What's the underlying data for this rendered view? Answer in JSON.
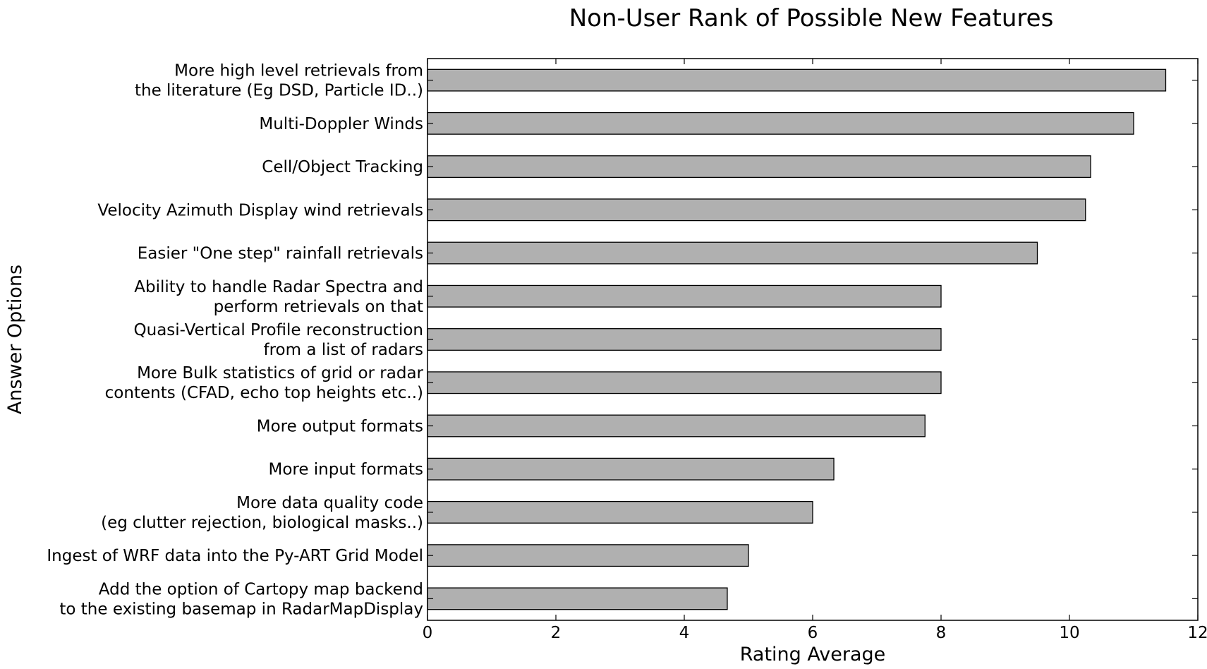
{
  "chart_data": {
    "type": "bar",
    "orientation": "horizontal",
    "title": "Non-User Rank of Possible New Features",
    "xlabel": "Rating Average",
    "ylabel": "Answer Options",
    "xlim": [
      0,
      12
    ],
    "xticks": [
      "0",
      "2",
      "4",
      "6",
      "8",
      "10",
      "12"
    ],
    "grid": false,
    "categories": [
      [
        "More high level retrievals from",
        "the literature (Eg DSD, Particle ID..)"
      ],
      [
        "Multi-Doppler Winds"
      ],
      [
        "Cell/Object Tracking"
      ],
      [
        "Velocity Azimuth Display wind retrievals"
      ],
      [
        "Easier \"One step\" rainfall retrievals"
      ],
      [
        "Ability to handle Radar Spectra and",
        "perform retrievals on that"
      ],
      [
        "Quasi-Vertical Profile reconstruction",
        "from a list of radars"
      ],
      [
        "More Bulk statistics of grid or radar",
        "contents (CFAD, echo top heights etc..)"
      ],
      [
        "More output formats"
      ],
      [
        "More input formats"
      ],
      [
        "More data quality code",
        "(eg clutter rejection, biological masks..)"
      ],
      [
        "Ingest of WRF data into the Py-ART Grid Model"
      ],
      [
        "Add the option of Cartopy map backend",
        "to the existing basemap in RadarMapDisplay"
      ]
    ],
    "values": [
      11.5,
      11.0,
      10.33,
      10.25,
      9.5,
      8.0,
      8.0,
      8.0,
      7.75,
      6.33,
      6.0,
      5.0,
      4.67
    ],
    "bar_color": "#b0b0b0",
    "edge_color": "#000000"
  }
}
